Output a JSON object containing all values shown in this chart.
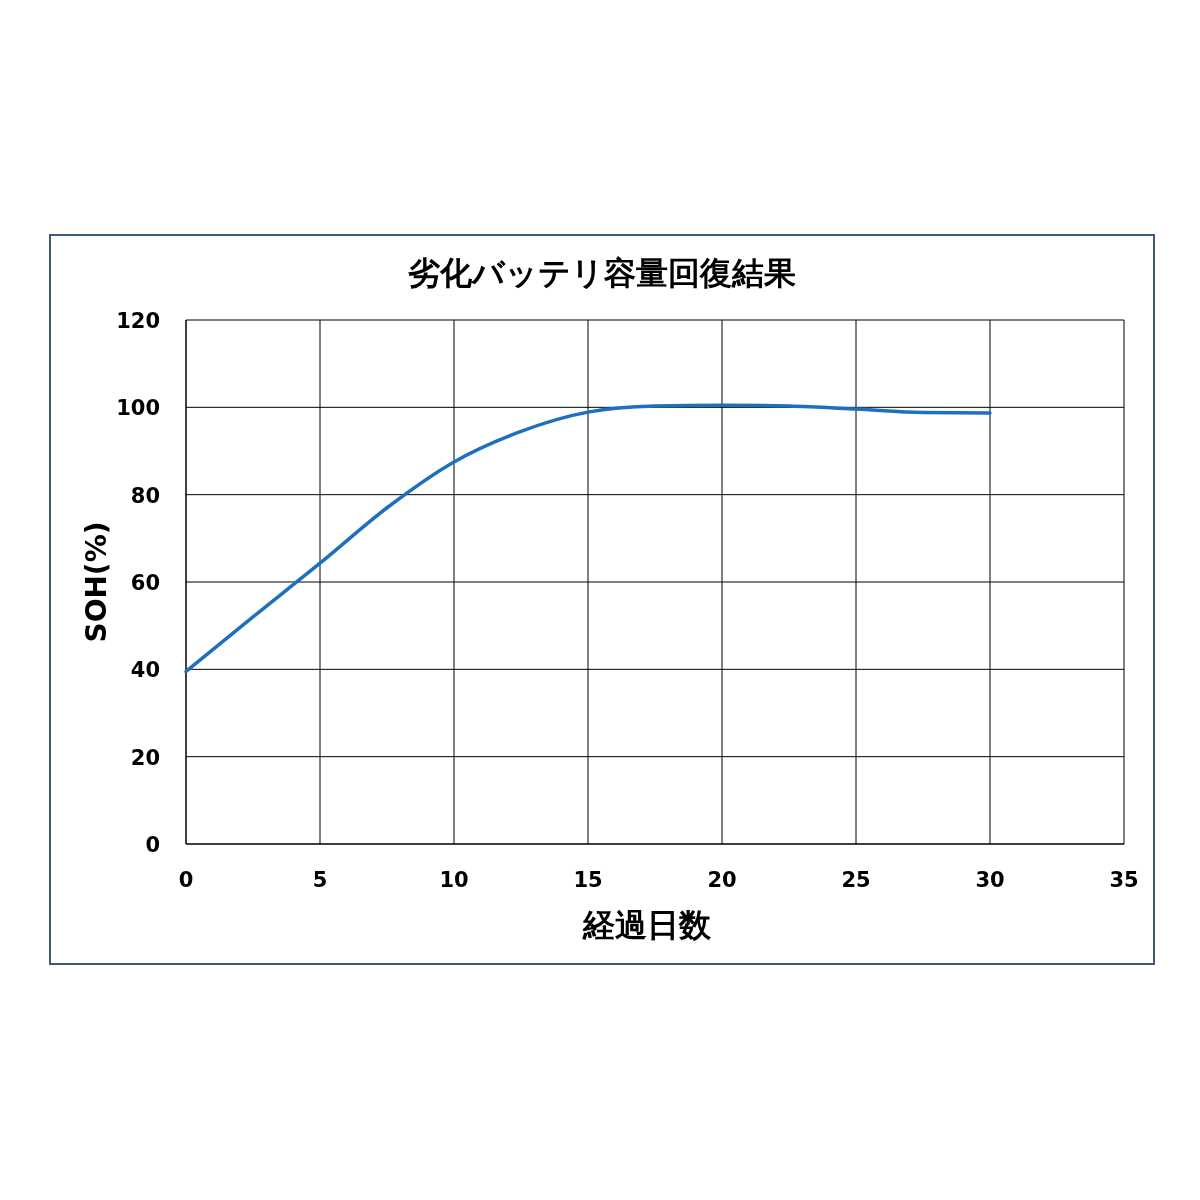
{
  "chart_data": {
    "type": "line",
    "title": "劣化バッテリ容量回復結果",
    "xlabel": "経過日数",
    "ylabel": "SOH(%)",
    "xlim": [
      0,
      35
    ],
    "xticks": [
      0,
      5,
      10,
      15,
      20,
      25,
      30,
      35
    ],
    "ylim": [
      0,
      120
    ],
    "yticks": [
      0,
      20,
      40,
      60,
      80,
      100,
      120
    ],
    "grid": true,
    "marker": "none",
    "line_style": "solid",
    "series": [
      {
        "color": "#1f6fbf",
        "x": [
          0,
          2.5,
          5,
          7.5,
          10,
          12.5,
          15,
          17.5,
          20,
          22.5,
          25,
          27.5,
          30
        ],
        "values": [
          39.5,
          52,
          64.3,
          77,
          87.5,
          94.5,
          98.9,
          100.3,
          100.5,
          100.3,
          99.6,
          98.8,
          98.7
        ]
      }
    ]
  }
}
